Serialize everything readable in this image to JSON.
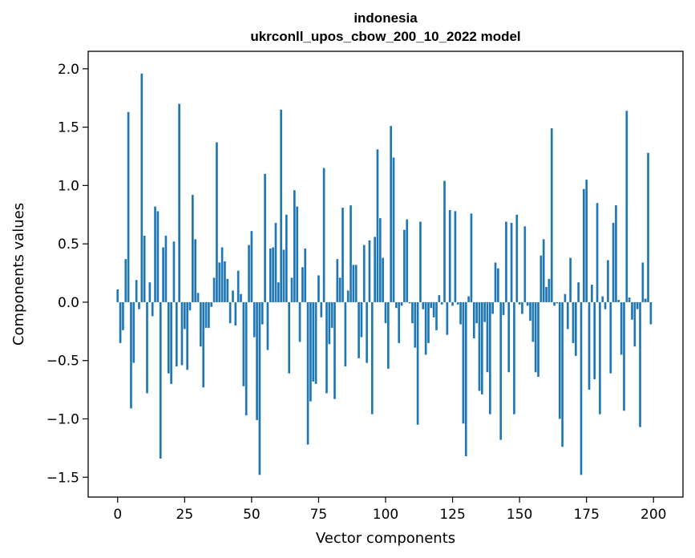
{
  "chart_data": {
    "type": "bar",
    "title": "indonesia",
    "subtitle": "ukrconll_upos_cbow_200_10_2022 model",
    "xlabel": "Vector components",
    "ylabel": "Components values",
    "xlim": [
      -11,
      211
    ],
    "ylim": [
      -1.67,
      2.15
    ],
    "xticks": [
      0,
      25,
      50,
      75,
      100,
      125,
      150,
      175,
      200
    ],
    "yticks": [
      -1.5,
      -1.0,
      -0.5,
      0.0,
      0.5,
      1.0,
      1.5,
      2.0
    ],
    "xtick_labels": [
      "0",
      "25",
      "50",
      "75",
      "100",
      "125",
      "150",
      "175",
      "200"
    ],
    "ytick_labels": [
      "−1.5",
      "−1.0",
      "−0.5",
      "0.0",
      "0.5",
      "1.0",
      "1.5",
      "2.0"
    ],
    "grid": false,
    "bar_color": "#1f77b4",
    "values": [
      0.11,
      -0.35,
      -0.24,
      0.37,
      1.63,
      -0.91,
      -0.52,
      0.19,
      -0.06,
      1.96,
      0.57,
      -0.78,
      0.17,
      -0.12,
      0.82,
      0.78,
      -1.34,
      0.47,
      0.57,
      -0.61,
      -0.7,
      0.52,
      -0.55,
      1.7,
      -0.54,
      -0.23,
      -0.58,
      -0.07,
      0.92,
      0.54,
      0.08,
      -0.38,
      -0.73,
      -0.22,
      -0.22,
      -0.04,
      0.21,
      1.37,
      0.34,
      0.47,
      0.35,
      0.2,
      -0.18,
      0.1,
      -0.2,
      0.27,
      0.07,
      -0.72,
      -0.97,
      0.49,
      0.61,
      -0.3,
      -1.01,
      -1.48,
      -0.19,
      1.1,
      -0.41,
      0.46,
      0.47,
      0.68,
      0.17,
      1.65,
      0.45,
      0.75,
      -0.61,
      0.21,
      0.96,
      0.82,
      -0.34,
      0.3,
      0.46,
      -1.22,
      -0.85,
      -0.68,
      -0.7,
      0.23,
      -0.13,
      1.15,
      -0.78,
      -0.36,
      -0.22,
      -0.83,
      0.37,
      0.21,
      0.81,
      -0.55,
      0.1,
      0.83,
      0.32,
      0.32,
      -0.48,
      -0.3,
      0.49,
      -0.52,
      0.53,
      -0.96,
      0.56,
      1.31,
      0.72,
      0.38,
      -0.18,
      -0.57,
      1.51,
      1.24,
      -0.05,
      -0.35,
      -0.03,
      0.62,
      0.71,
      -0.01,
      -0.18,
      -0.39,
      -1.05,
      0.69,
      -0.06,
      -0.45,
      -0.35,
      -0.05,
      -0.13,
      -0.24,
      0.06,
      -0.02,
      1.04,
      -0.28,
      0.79,
      -0.03,
      0.78,
      -0.02,
      -0.19,
      -1.04,
      -1.32,
      0.05,
      0.76,
      -0.31,
      -0.18,
      -0.76,
      -0.79,
      -0.17,
      -0.6,
      -0.96,
      -0.1,
      0.34,
      0.29,
      -1.18,
      -0.11,
      0.69,
      -0.6,
      0.68,
      -0.96,
      0.75,
      -0.02,
      -0.1,
      0.65,
      -0.03,
      -0.16,
      -0.34,
      -0.6,
      -0.64,
      0.4,
      0.54,
      0.13,
      0.2,
      1.49,
      -0.03,
      -0.01,
      -1.0,
      -1.24,
      0.07,
      -0.23,
      0.38,
      -0.35,
      -0.46,
      0.17,
      -1.48,
      0.97,
      1.05,
      -0.75,
      0.15,
      -0.66,
      0.85,
      -0.96,
      0.05,
      -0.06,
      0.36,
      -0.61,
      0.68,
      0.83,
      0.02,
      -0.45,
      -0.93,
      1.64,
      0.04,
      -0.15,
      -0.38,
      -0.06,
      -1.07,
      0.34,
      0.03,
      1.28,
      -0.19
    ]
  }
}
